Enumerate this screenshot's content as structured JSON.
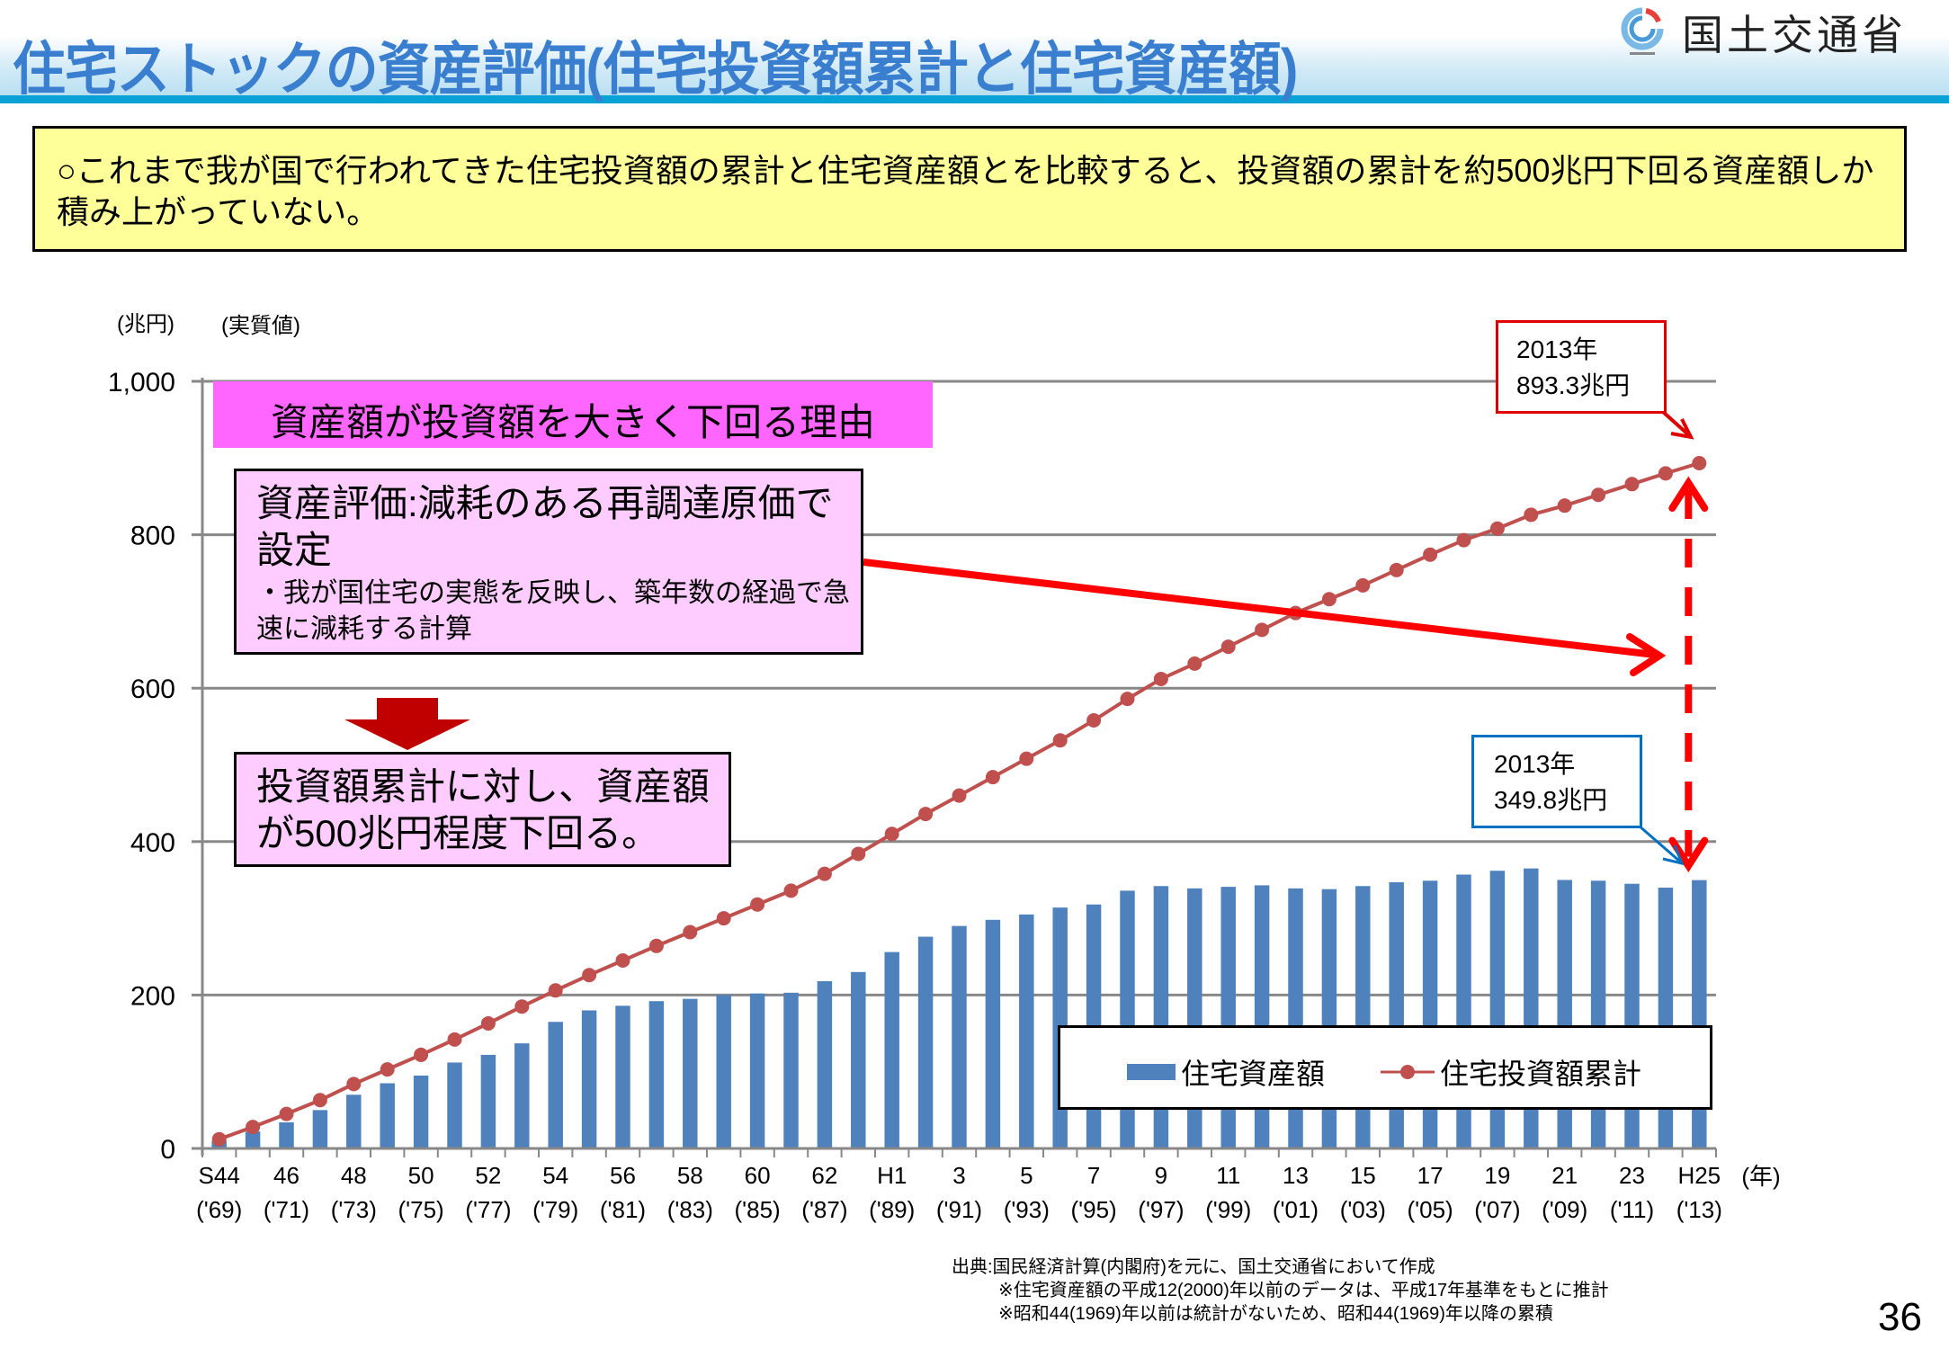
{
  "header": {
    "title": "住宅ストックの資産評価(住宅投資額累計と住宅資産額)",
    "org_name": "国土交通省",
    "logo_icon": "mlit-logo-icon"
  },
  "summary": {
    "text": "○これまで我が国で行われてきた住宅投資額の累計と住宅資産額とを比較すると、投資額の累計を約500兆円下回る資産額しか積み上がっていない。"
  },
  "annotations": {
    "reason_heading": "資産額が投資額を大きく下回る理由",
    "reason_main": "資産評価:減耗のある再調達原価で設定",
    "reason_detail": "・我が国住宅の実態を反映し、築年数の経過で急速に減耗する計算",
    "result": "投資額累計に対し、資産額が500兆円程度下回る。",
    "callout_investment": {
      "year": "2013年",
      "value": "893.3兆円"
    },
    "callout_asset": {
      "year": "2013年",
      "value": "349.8兆円"
    }
  },
  "source": {
    "line1": "出典:国民経済計算(内閣府)を元に、国土交通省において作成",
    "line2": "※住宅資産額の平成12(2000)年以前のデータは、平成17年基準をもとに推計",
    "line3": "※昭和44(1969)年以前は統計がないため、昭和44(1969)年以降の累積"
  },
  "page_number": "36",
  "colors": {
    "bar": "#4f81bd",
    "line": "#c0504d",
    "arrow": "#ff0000",
    "callout_red": "#e00000",
    "callout_blue": "#0070c0",
    "title": "#3a7fcf"
  },
  "chart_data": {
    "type": "bar+line",
    "title": "",
    "ylabel": "(兆円)",
    "ylabel_note": "(実質値)",
    "xlabel": "(年)",
    "ylim": [
      0,
      1000
    ],
    "yticks": [
      0,
      200,
      400,
      600,
      800,
      1000
    ],
    "ytick_labels": [
      "0",
      "200",
      "400",
      "600",
      "800",
      "1,000"
    ],
    "grid": true,
    "legend_position": "bottom-right",
    "x_years": [
      1969,
      1970,
      1971,
      1972,
      1973,
      1974,
      1975,
      1976,
      1977,
      1978,
      1979,
      1980,
      1981,
      1982,
      1983,
      1984,
      1985,
      1986,
      1987,
      1988,
      1989,
      1990,
      1991,
      1992,
      1993,
      1994,
      1995,
      1996,
      1997,
      1998,
      1999,
      2000,
      2001,
      2002,
      2003,
      2004,
      2005,
      2006,
      2007,
      2008,
      2009,
      2010,
      2011,
      2012,
      2013
    ],
    "tick_labels_era": [
      "S44",
      "46",
      "48",
      "50",
      "52",
      "54",
      "56",
      "58",
      "60",
      "62",
      "H1",
      "3",
      "5",
      "7",
      "9",
      "11",
      "13",
      "15",
      "17",
      "19",
      "21",
      "23",
      "H25"
    ],
    "tick_labels_western": [
      "('69)",
      "('71)",
      "('73)",
      "('75)",
      "('77)",
      "('79)",
      "('81)",
      "('83)",
      "('85)",
      "('87)",
      "('89)",
      "('91)",
      "('93)",
      "('95)",
      "('97)",
      "('99)",
      "('01)",
      "('03)",
      "('05)",
      "('07)",
      "('09)",
      "('11)",
      "('13)"
    ],
    "series": [
      {
        "name": "住宅資産額",
        "type": "bar",
        "values": [
          10,
          22,
          34,
          50,
          70,
          85,
          95,
          112,
          122,
          137,
          165,
          180,
          186,
          192,
          195,
          200,
          202,
          203,
          218,
          230,
          256,
          276,
          290,
          298,
          305,
          314,
          318,
          336,
          342,
          339,
          341,
          343,
          339,
          338,
          342,
          347,
          349,
          357,
          362,
          365,
          350,
          349,
          345,
          340,
          349.8
        ]
      },
      {
        "name": "住宅投資額累計",
        "type": "line",
        "values": [
          12,
          28,
          45,
          63,
          84,
          103,
          122,
          142,
          163,
          185,
          206,
          226,
          245,
          264,
          282,
          300,
          318,
          336,
          358,
          384,
          410,
          436,
          460,
          484,
          508,
          532,
          558,
          586,
          612,
          632,
          654,
          676,
          698,
          716,
          734,
          754,
          774,
          793,
          808,
          826,
          838,
          852,
          866,
          880,
          893.3
        ]
      }
    ]
  }
}
